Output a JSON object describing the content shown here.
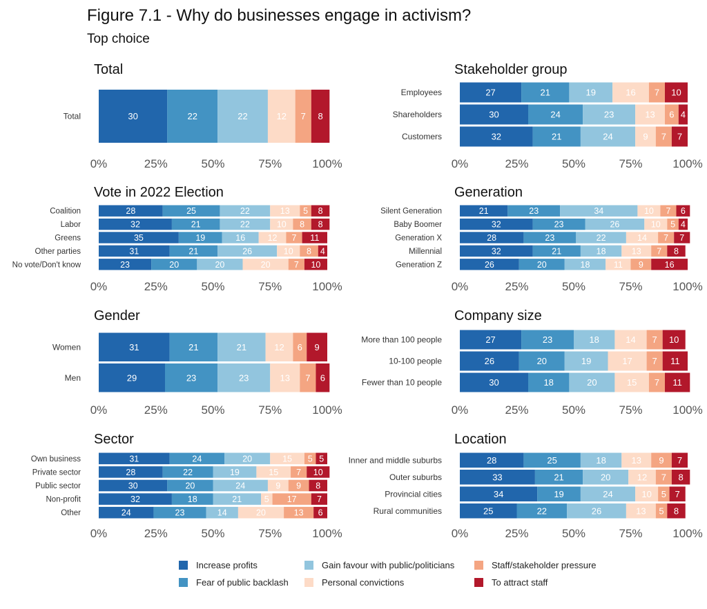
{
  "figure": {
    "title": "Figure 7.1 - Why do businesses engage in activism?",
    "subtitle": "Top choice"
  },
  "colors": {
    "Increase profits": "#2166ac",
    "Fear of public backlash": "#4393c3",
    "Gain favour with public/politicians": "#92c5de",
    "Personal convictions": "#fddbc7",
    "Staff/stakeholder pressure": "#f4a582",
    "To attract staff": "#b2182b"
  },
  "legend": {
    "placement": "bottom",
    "items": [
      "Increase profits",
      "Fear of public backlash",
      "Gain favour with public/politicians",
      "Personal convictions",
      "Staff/stakeholder pressure",
      "To attract staff"
    ]
  },
  "chart_data": [
    {
      "type": "bar",
      "orientation": "horizontal",
      "stacked": true,
      "title": "Total",
      "x_ticks": [
        "0%",
        "25%",
        "50%",
        "75%",
        "100%"
      ],
      "xlim": [
        0,
        100
      ],
      "categories": [
        "Total"
      ],
      "series": [
        {
          "name": "Increase profits",
          "values": [
            30
          ]
        },
        {
          "name": "Fear of public backlash",
          "values": [
            22
          ]
        },
        {
          "name": "Gain favour with public/politicians",
          "values": [
            22
          ]
        },
        {
          "name": "Personal convictions",
          "values": [
            12
          ]
        },
        {
          "name": "Staff/stakeholder pressure",
          "values": [
            7
          ]
        },
        {
          "name": "To attract staff",
          "values": [
            8
          ]
        }
      ]
    },
    {
      "type": "bar",
      "orientation": "horizontal",
      "stacked": true,
      "title": "Stakeholder group",
      "x_ticks": [
        "0%",
        "25%",
        "50%",
        "75%",
        "100%"
      ],
      "xlim": [
        0,
        100
      ],
      "categories": [
        "Employees",
        "Shareholders",
        "Customers"
      ],
      "series": [
        {
          "name": "Increase profits",
          "values": [
            27,
            30,
            32
          ]
        },
        {
          "name": "Fear of public backlash",
          "values": [
            21,
            24,
            21
          ]
        },
        {
          "name": "Gain favour with public/politicians",
          "values": [
            19,
            23,
            24
          ]
        },
        {
          "name": "Personal convictions",
          "values": [
            16,
            13,
            9
          ]
        },
        {
          "name": "Staff/stakeholder pressure",
          "values": [
            7,
            6,
            7
          ]
        },
        {
          "name": "To attract staff",
          "values": [
            10,
            4,
            7
          ]
        }
      ]
    },
    {
      "type": "bar",
      "orientation": "horizontal",
      "stacked": true,
      "title": "Vote in 2022 Election",
      "x_ticks": [
        "0%",
        "25%",
        "50%",
        "75%",
        "100%"
      ],
      "xlim": [
        0,
        100
      ],
      "categories": [
        "Coalition",
        "Labor",
        "Greens",
        "Other parties",
        "No vote/Don't know"
      ],
      "series": [
        {
          "name": "Increase profits",
          "values": [
            28,
            32,
            35,
            31,
            23
          ]
        },
        {
          "name": "Fear of public backlash",
          "values": [
            25,
            21,
            19,
            21,
            20
          ]
        },
        {
          "name": "Gain favour with public/politicians",
          "values": [
            22,
            22,
            16,
            26,
            20
          ]
        },
        {
          "name": "Personal convictions",
          "values": [
            13,
            10,
            12,
            10,
            20
          ]
        },
        {
          "name": "Staff/stakeholder pressure",
          "values": [
            5,
            8,
            7,
            8,
            7
          ]
        },
        {
          "name": "To attract staff",
          "values": [
            8,
            8,
            11,
            4,
            10
          ]
        }
      ]
    },
    {
      "type": "bar",
      "orientation": "horizontal",
      "stacked": true,
      "title": "Generation",
      "x_ticks": [
        "0%",
        "25%",
        "50%",
        "75%",
        "100%"
      ],
      "xlim": [
        0,
        100
      ],
      "categories": [
        "Silent Generation",
        "Baby Boomer",
        "Generation X",
        "Millennial",
        "Generation Z"
      ],
      "series": [
        {
          "name": "Increase profits",
          "values": [
            21,
            32,
            28,
            32,
            26
          ]
        },
        {
          "name": "Fear of public backlash",
          "values": [
            23,
            23,
            23,
            21,
            20
          ]
        },
        {
          "name": "Gain favour with public/politicians",
          "values": [
            34,
            26,
            22,
            18,
            18
          ]
        },
        {
          "name": "Personal convictions",
          "values": [
            10,
            10,
            14,
            13,
            11
          ]
        },
        {
          "name": "Staff/stakeholder pressure",
          "values": [
            7,
            5,
            7,
            7,
            9
          ]
        },
        {
          "name": "To attract staff",
          "values": [
            6,
            4,
            7,
            8,
            16
          ]
        }
      ]
    },
    {
      "type": "bar",
      "orientation": "horizontal",
      "stacked": true,
      "title": "Gender",
      "x_ticks": [
        "0%",
        "25%",
        "50%",
        "75%",
        "100%"
      ],
      "xlim": [
        0,
        100
      ],
      "categories": [
        "Women",
        "Men"
      ],
      "series": [
        {
          "name": "Increase profits",
          "values": [
            31,
            29
          ]
        },
        {
          "name": "Fear of public backlash",
          "values": [
            21,
            23
          ]
        },
        {
          "name": "Gain favour with public/politicians",
          "values": [
            21,
            23
          ]
        },
        {
          "name": "Personal convictions",
          "values": [
            12,
            13
          ]
        },
        {
          "name": "Staff/stakeholder pressure",
          "values": [
            6,
            7
          ]
        },
        {
          "name": "To attract staff",
          "values": [
            9,
            6
          ]
        }
      ]
    },
    {
      "type": "bar",
      "orientation": "horizontal",
      "stacked": true,
      "title": "Company size",
      "x_ticks": [
        "0%",
        "25%",
        "50%",
        "75%",
        "100%"
      ],
      "xlim": [
        0,
        100
      ],
      "categories": [
        "More than 100 people",
        "10-100 people",
        "Fewer than 10 people"
      ],
      "series": [
        {
          "name": "Increase profits",
          "values": [
            27,
            26,
            30
          ]
        },
        {
          "name": "Fear of public backlash",
          "values": [
            23,
            20,
            18
          ]
        },
        {
          "name": "Gain favour with public/politicians",
          "values": [
            18,
            19,
            20
          ]
        },
        {
          "name": "Personal convictions",
          "values": [
            14,
            17,
            15
          ]
        },
        {
          "name": "Staff/stakeholder pressure",
          "values": [
            7,
            7,
            7
          ]
        },
        {
          "name": "To attract staff",
          "values": [
            10,
            11,
            11
          ]
        }
      ]
    },
    {
      "type": "bar",
      "orientation": "horizontal",
      "stacked": true,
      "title": "Sector",
      "x_ticks": [
        "0%",
        "25%",
        "50%",
        "75%",
        "100%"
      ],
      "xlim": [
        0,
        100
      ],
      "categories": [
        "Own business",
        "Private sector",
        "Public sector",
        "Non-profit",
        "Other"
      ],
      "series": [
        {
          "name": "Increase profits",
          "values": [
            31,
            28,
            30,
            32,
            24
          ]
        },
        {
          "name": "Fear of public backlash",
          "values": [
            24,
            22,
            20,
            18,
            23
          ]
        },
        {
          "name": "Gain favour with public/politicians",
          "values": [
            20,
            19,
            24,
            21,
            14
          ]
        },
        {
          "name": "Personal convictions",
          "values": [
            15,
            15,
            9,
            5,
            20
          ]
        },
        {
          "name": "Staff/stakeholder pressure",
          "values": [
            5,
            7,
            9,
            17,
            13
          ]
        },
        {
          "name": "To attract staff",
          "values": [
            5,
            10,
            8,
            7,
            6
          ]
        }
      ]
    },
    {
      "type": "bar",
      "orientation": "horizontal",
      "stacked": true,
      "title": "Location",
      "x_ticks": [
        "0%",
        "25%",
        "50%",
        "75%",
        "100%"
      ],
      "xlim": [
        0,
        100
      ],
      "categories": [
        "Inner and middle suburbs",
        "Outer suburbs",
        "Provincial cities",
        "Rural communities"
      ],
      "series": [
        {
          "name": "Increase profits",
          "values": [
            28,
            33,
            34,
            25
          ]
        },
        {
          "name": "Fear of public backlash",
          "values": [
            25,
            21,
            19,
            22
          ]
        },
        {
          "name": "Gain favour with public/politicians",
          "values": [
            18,
            20,
            24,
            26
          ]
        },
        {
          "name": "Personal convictions",
          "values": [
            13,
            12,
            10,
            13
          ]
        },
        {
          "name": "Staff/stakeholder pressure",
          "values": [
            9,
            7,
            5,
            5
          ]
        },
        {
          "name": "To attract staff",
          "values": [
            7,
            8,
            7,
            8
          ]
        }
      ]
    }
  ]
}
